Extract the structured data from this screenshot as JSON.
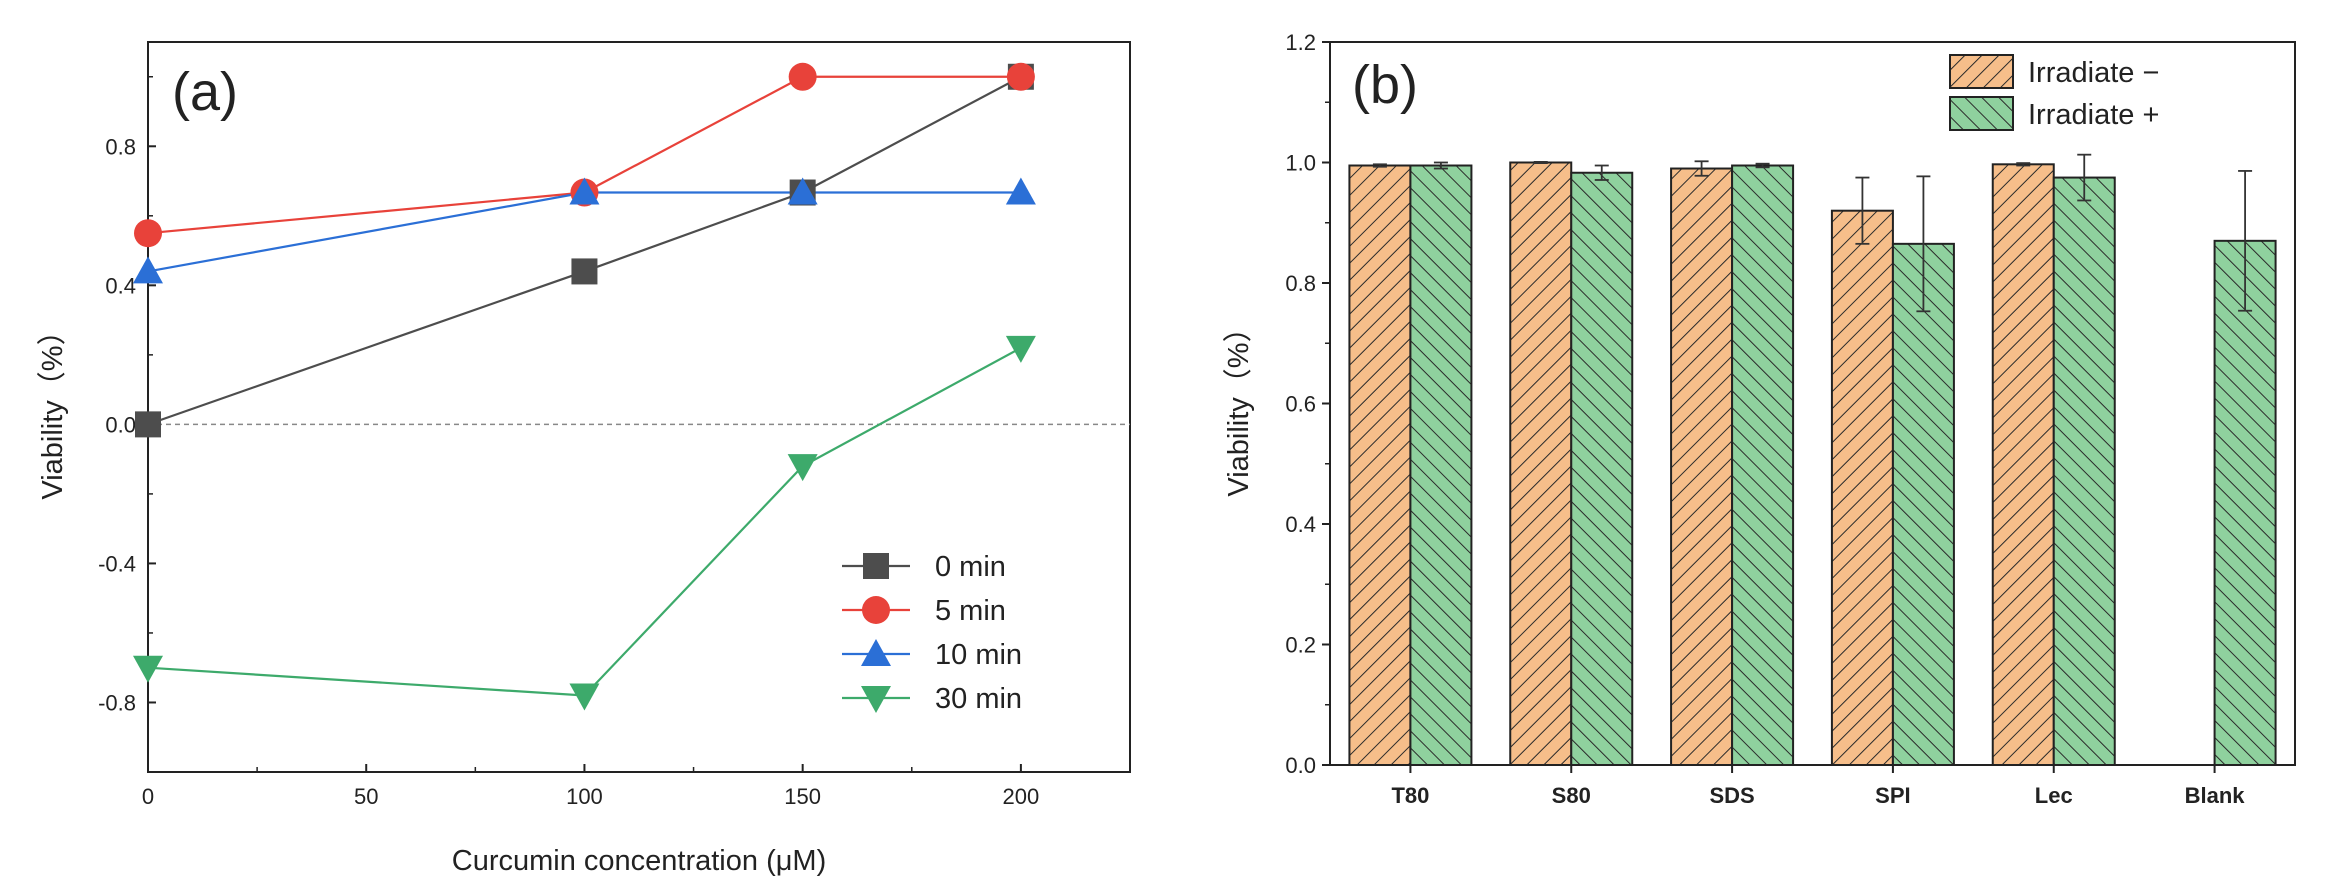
{
  "chart_data": [
    {
      "panel_label": "(a)",
      "type": "line",
      "title": "",
      "xlabel": "Curcumin concentration (μM)",
      "ylabel": "Viability（%）",
      "xlim": [
        0,
        225
      ],
      "ylim": [
        -1.0,
        1.1
      ],
      "xticks": [
        0,
        50,
        100,
        150,
        200
      ],
      "yticks": [
        -0.8,
        -0.4,
        0.0,
        0.4,
        0.8
      ],
      "ytick_labels": [
        "-0.8",
        "-0.4",
        "0.0",
        "0.4",
        "0.8"
      ],
      "reference_line_y": 0,
      "legend_position": "lower-right",
      "series": [
        {
          "name": "0 min",
          "color": "#4d4d4d",
          "marker": "square",
          "x": [
            0,
            100,
            150,
            200
          ],
          "values": [
            0.0,
            0.44,
            0.667,
            1.0
          ]
        },
        {
          "name": "5 min",
          "color": "#e8423a",
          "marker": "circle",
          "x": [
            0,
            100,
            150,
            200
          ],
          "values": [
            0.55,
            0.667,
            1.0,
            1.0
          ]
        },
        {
          "name": "10 min",
          "color": "#2b6fd6",
          "marker": "triangle-up",
          "x": [
            0,
            100,
            150,
            200
          ],
          "values": [
            0.44,
            0.667,
            0.667,
            0.667
          ]
        },
        {
          "name": "30 min",
          "color": "#3daa6b",
          "marker": "triangle-down",
          "x": [
            0,
            100,
            150,
            200
          ],
          "values": [
            -0.7,
            -0.78,
            -0.12,
            0.22
          ]
        }
      ]
    },
    {
      "panel_label": "(b)",
      "type": "bar",
      "title": "",
      "xlabel": "",
      "ylabel": "Viability（%）",
      "ylim": [
        0,
        1.2
      ],
      "yticks": [
        0.0,
        0.2,
        0.4,
        0.6,
        0.8,
        1.0,
        1.2
      ],
      "ytick_labels": [
        "0.0",
        "0.2",
        "0.4",
        "0.6",
        "0.8",
        "1.0",
        "1.2"
      ],
      "categories": [
        "T80",
        "S80",
        "SDS",
        "SPI",
        "Lec",
        "Blank"
      ],
      "legend_position": "top-right",
      "series": [
        {
          "name": "Irradiate −",
          "color": "#f6be8a",
          "hatch": "forward",
          "values": [
            0.995,
            1.0,
            0.99,
            0.92,
            0.997,
            null
          ],
          "errors": [
            0.002,
            0.001,
            0.012,
            0.055,
            0.002,
            null
          ]
        },
        {
          "name": "Irradiate +",
          "color": "#8fd19e",
          "hatch": "back",
          "values": [
            0.995,
            0.983,
            0.995,
            0.865,
            0.975,
            0.87
          ],
          "errors": [
            0.005,
            0.012,
            0.003,
            0.112,
            0.038,
            0.116
          ]
        }
      ]
    }
  ]
}
